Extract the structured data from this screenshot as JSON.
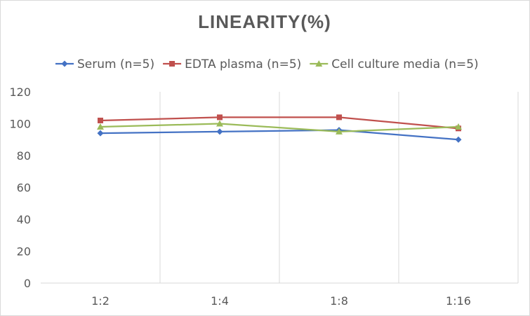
{
  "chart_data": {
    "type": "line",
    "title": "LINEARITY(%)",
    "xlabel": "",
    "ylabel": "",
    "categories": [
      "1:2",
      "1:4",
      "1:8",
      "1:16"
    ],
    "ylim": [
      0,
      120
    ],
    "yticks": [
      0,
      20,
      40,
      60,
      80,
      100,
      120
    ],
    "grid": "vertical",
    "legend": "top",
    "series": [
      {
        "name": "Serum (n=5)",
        "color": "#4472C4",
        "marker": "diamond",
        "values": [
          94,
          95,
          96,
          90
        ]
      },
      {
        "name": "EDTA plasma (n=5)",
        "color": "#C0504D",
        "marker": "square",
        "values": [
          102,
          104,
          104,
          97
        ]
      },
      {
        "name": "Cell culture media (n=5)",
        "color": "#9BBB59",
        "marker": "triangle",
        "values": [
          98,
          100,
          95,
          98
        ]
      }
    ]
  }
}
